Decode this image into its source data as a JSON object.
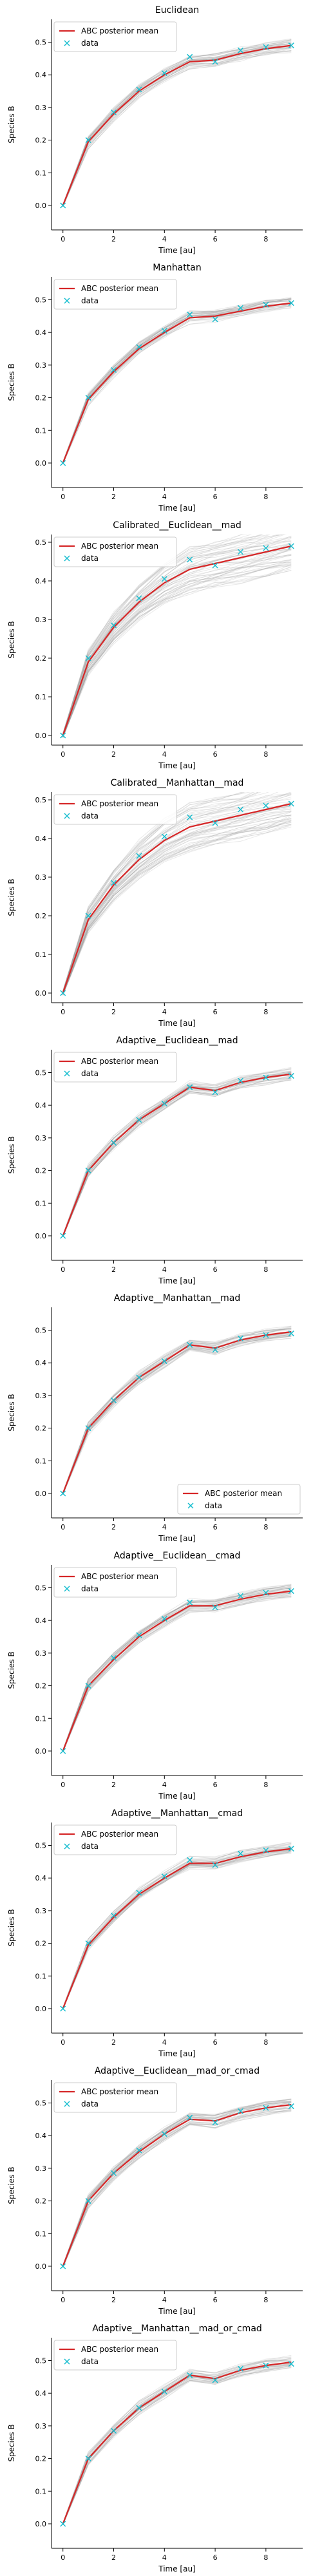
{
  "legend_labels": {
    "mean": "ABC posterior mean",
    "data": "data"
  },
  "colors": {
    "mean": "#d62728",
    "data": "#17becf",
    "samples": "#9a9a9a"
  },
  "chart_data": [
    {
      "type": "line",
      "title": "Euclidean",
      "xlabel": "Time [au]",
      "ylabel": "Species B",
      "xlim": [
        -0.45,
        9.45
      ],
      "ylim": [
        -0.075,
        0.57
      ],
      "xticks": [
        0,
        2,
        4,
        6,
        8
      ],
      "yticks": [
        0.0,
        0.1,
        0.2,
        0.3,
        0.4,
        0.5
      ],
      "x": [
        0,
        1,
        2,
        3,
        4,
        5,
        6,
        7,
        8,
        9
      ],
      "legend": "upper left",
      "band": "narrow",
      "series": [
        {
          "name": "ABC posterior mean",
          "values": [
            0.0,
            0.195,
            0.28,
            0.35,
            0.4,
            0.44,
            0.445,
            0.465,
            0.48,
            0.49
          ]
        },
        {
          "name": "data",
          "values": [
            0.0,
            0.2,
            0.285,
            0.355,
            0.405,
            0.455,
            0.44,
            0.475,
            0.485,
            0.49
          ]
        }
      ]
    },
    {
      "type": "line",
      "title": "Manhattan",
      "xlabel": "Time [au]",
      "ylabel": "Species B",
      "xlim": [
        -0.45,
        9.45
      ],
      "ylim": [
        -0.075,
        0.57
      ],
      "xticks": [
        0,
        2,
        4,
        6,
        8
      ],
      "yticks": [
        0.0,
        0.1,
        0.2,
        0.3,
        0.4,
        0.5
      ],
      "x": [
        0,
        1,
        2,
        3,
        4,
        5,
        6,
        7,
        8,
        9
      ],
      "legend": "upper left",
      "band": "narrow",
      "series": [
        {
          "name": "ABC posterior mean",
          "values": [
            0.0,
            0.195,
            0.28,
            0.35,
            0.4,
            0.445,
            0.45,
            0.465,
            0.48,
            0.49
          ]
        },
        {
          "name": "data",
          "values": [
            0.0,
            0.2,
            0.285,
            0.355,
            0.405,
            0.455,
            0.44,
            0.475,
            0.485,
            0.49
          ]
        }
      ]
    },
    {
      "type": "line",
      "title": "Calibrated__Euclidean__mad",
      "xlabel": "Time [au]",
      "ylabel": "Species B",
      "xlim": [
        -0.45,
        9.45
      ],
      "ylim": [
        -0.025,
        0.52
      ],
      "xticks": [
        0,
        2,
        4,
        6,
        8
      ],
      "yticks": [
        0.0,
        0.1,
        0.2,
        0.3,
        0.4,
        0.5
      ],
      "x": [
        0,
        1,
        2,
        3,
        4,
        5,
        6,
        7,
        8,
        9
      ],
      "legend": "upper left",
      "band": "wide",
      "series": [
        {
          "name": "ABC posterior mean",
          "values": [
            0.0,
            0.19,
            0.28,
            0.345,
            0.395,
            0.43,
            0.445,
            0.46,
            0.475,
            0.49
          ]
        },
        {
          "name": "data",
          "values": [
            0.0,
            0.2,
            0.285,
            0.355,
            0.405,
            0.455,
            0.44,
            0.475,
            0.485,
            0.49
          ]
        }
      ]
    },
    {
      "type": "line",
      "title": "Calibrated__Manhattan__mad",
      "xlabel": "Time [au]",
      "ylabel": "Species B",
      "xlim": [
        -0.45,
        9.45
      ],
      "ylim": [
        -0.025,
        0.52
      ],
      "xticks": [
        0,
        2,
        4,
        6,
        8
      ],
      "yticks": [
        0.0,
        0.1,
        0.2,
        0.3,
        0.4,
        0.5
      ],
      "x": [
        0,
        1,
        2,
        3,
        4,
        5,
        6,
        7,
        8,
        9
      ],
      "legend": "upper left",
      "band": "wide",
      "series": [
        {
          "name": "ABC posterior mean",
          "values": [
            0.0,
            0.19,
            0.28,
            0.345,
            0.395,
            0.43,
            0.445,
            0.46,
            0.475,
            0.49
          ]
        },
        {
          "name": "data",
          "values": [
            0.0,
            0.2,
            0.285,
            0.355,
            0.405,
            0.455,
            0.44,
            0.475,
            0.485,
            0.49
          ]
        }
      ]
    },
    {
      "type": "line",
      "title": "Adaptive__Euclidean__mad",
      "xlabel": "Time [au]",
      "ylabel": "Species B",
      "xlim": [
        -0.45,
        9.45
      ],
      "ylim": [
        -0.075,
        0.57
      ],
      "xticks": [
        0,
        2,
        4,
        6,
        8
      ],
      "yticks": [
        0.0,
        0.1,
        0.2,
        0.3,
        0.4,
        0.5
      ],
      "x": [
        0,
        1,
        2,
        3,
        4,
        5,
        6,
        7,
        8,
        9
      ],
      "legend": "upper left",
      "band": "narrow",
      "series": [
        {
          "name": "ABC posterior mean",
          "values": [
            0.0,
            0.2,
            0.285,
            0.355,
            0.405,
            0.455,
            0.445,
            0.47,
            0.485,
            0.495
          ]
        },
        {
          "name": "data",
          "values": [
            0.0,
            0.2,
            0.285,
            0.355,
            0.405,
            0.455,
            0.44,
            0.475,
            0.485,
            0.49
          ]
        }
      ]
    },
    {
      "type": "line",
      "title": "Adaptive__Manhattan__mad",
      "xlabel": "Time [au]",
      "ylabel": "Species B",
      "xlim": [
        -0.45,
        9.45
      ],
      "ylim": [
        -0.075,
        0.57
      ],
      "xticks": [
        0,
        2,
        4,
        6,
        8
      ],
      "yticks": [
        0.0,
        0.1,
        0.2,
        0.3,
        0.4,
        0.5
      ],
      "x": [
        0,
        1,
        2,
        3,
        4,
        5,
        6,
        7,
        8,
        9
      ],
      "legend": "lower right",
      "band": "narrow",
      "series": [
        {
          "name": "ABC posterior mean",
          "values": [
            0.0,
            0.2,
            0.285,
            0.355,
            0.405,
            0.455,
            0.445,
            0.47,
            0.485,
            0.495
          ]
        },
        {
          "name": "data",
          "values": [
            0.0,
            0.2,
            0.285,
            0.355,
            0.405,
            0.455,
            0.44,
            0.475,
            0.485,
            0.49
          ]
        }
      ]
    },
    {
      "type": "line",
      "title": "Adaptive__Euclidean__cmad",
      "xlabel": "Time [au]",
      "ylabel": "Species B",
      "xlim": [
        -0.45,
        9.45
      ],
      "ylim": [
        -0.075,
        0.57
      ],
      "xticks": [
        0,
        2,
        4,
        6,
        8
      ],
      "yticks": [
        0.0,
        0.1,
        0.2,
        0.3,
        0.4,
        0.5
      ],
      "x": [
        0,
        1,
        2,
        3,
        4,
        5,
        6,
        7,
        8,
        9
      ],
      "legend": "upper left",
      "band": "narrow",
      "series": [
        {
          "name": "ABC posterior mean",
          "values": [
            0.0,
            0.2,
            0.28,
            0.35,
            0.4,
            0.445,
            0.445,
            0.465,
            0.48,
            0.49
          ]
        },
        {
          "name": "data",
          "values": [
            0.0,
            0.2,
            0.285,
            0.355,
            0.405,
            0.455,
            0.44,
            0.475,
            0.485,
            0.49
          ]
        }
      ]
    },
    {
      "type": "line",
      "title": "Adaptive__Manhattan__cmad",
      "xlabel": "Time [au]",
      "ylabel": "Species B",
      "xlim": [
        -0.45,
        9.45
      ],
      "ylim": [
        -0.075,
        0.57
      ],
      "xticks": [
        0,
        2,
        4,
        6,
        8
      ],
      "yticks": [
        0.0,
        0.1,
        0.2,
        0.3,
        0.4,
        0.5
      ],
      "x": [
        0,
        1,
        2,
        3,
        4,
        5,
        6,
        7,
        8,
        9
      ],
      "legend": "upper left",
      "band": "narrow",
      "series": [
        {
          "name": "ABC posterior mean",
          "values": [
            0.0,
            0.195,
            0.28,
            0.35,
            0.4,
            0.445,
            0.445,
            0.465,
            0.48,
            0.49
          ]
        },
        {
          "name": "data",
          "values": [
            0.0,
            0.2,
            0.285,
            0.355,
            0.405,
            0.455,
            0.44,
            0.475,
            0.485,
            0.49
          ]
        }
      ]
    },
    {
      "type": "line",
      "title": "Adaptive__Euclidean__mad_or_cmad",
      "xlabel": "Time [au]",
      "ylabel": "Species B",
      "xlim": [
        -0.45,
        9.45
      ],
      "ylim": [
        -0.075,
        0.57
      ],
      "xticks": [
        0,
        2,
        4,
        6,
        8
      ],
      "yticks": [
        0.0,
        0.1,
        0.2,
        0.3,
        0.4,
        0.5
      ],
      "x": [
        0,
        1,
        2,
        3,
        4,
        5,
        6,
        7,
        8,
        9
      ],
      "legend": "upper left",
      "band": "narrow",
      "series": [
        {
          "name": "ABC posterior mean",
          "values": [
            0.0,
            0.2,
            0.285,
            0.35,
            0.405,
            0.45,
            0.445,
            0.47,
            0.485,
            0.495
          ]
        },
        {
          "name": "data",
          "values": [
            0.0,
            0.2,
            0.285,
            0.355,
            0.405,
            0.455,
            0.44,
            0.475,
            0.485,
            0.49
          ]
        }
      ]
    },
    {
      "type": "line",
      "title": "Adaptive__Manhattan__mad_or_cmad",
      "xlabel": "Time [au]",
      "ylabel": "Species B",
      "xlim": [
        -0.45,
        9.45
      ],
      "ylim": [
        -0.075,
        0.57
      ],
      "xticks": [
        0,
        2,
        4,
        6,
        8
      ],
      "yticks": [
        0.0,
        0.1,
        0.2,
        0.3,
        0.4,
        0.5
      ],
      "x": [
        0,
        1,
        2,
        3,
        4,
        5,
        6,
        7,
        8,
        9
      ],
      "legend": "upper left",
      "band": "narrow",
      "series": [
        {
          "name": "ABC posterior mean",
          "values": [
            0.0,
            0.2,
            0.285,
            0.355,
            0.405,
            0.455,
            0.445,
            0.47,
            0.485,
            0.495
          ]
        },
        {
          "name": "data",
          "values": [
            0.0,
            0.2,
            0.285,
            0.355,
            0.405,
            0.455,
            0.44,
            0.475,
            0.485,
            0.49
          ]
        }
      ]
    }
  ]
}
